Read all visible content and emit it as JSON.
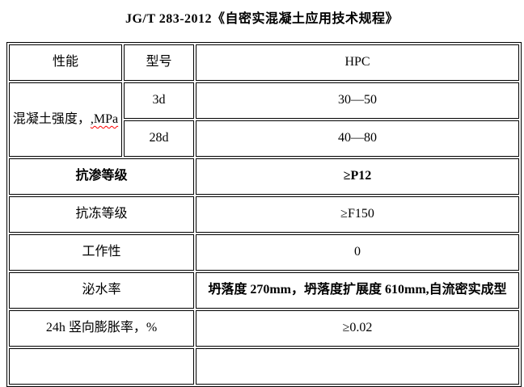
{
  "title": "JG/T 283-2012《自密实混凝土应用技术规程》",
  "table": {
    "header": {
      "performance": "性能",
      "model": "型号",
      "product": "HPC"
    },
    "strength": {
      "label_main": "混凝土强度，",
      "label_unit": ",MPa",
      "row_3d": {
        "age": "3d",
        "value": "30—50"
      },
      "row_28d": {
        "age": "28d",
        "value": "40—80"
      }
    },
    "impermeability": {
      "label": "抗渗等级",
      "value": "≥P12"
    },
    "frost_resistance": {
      "label": "抗冻等级",
      "value": "≥F150"
    },
    "workability": {
      "label": "工作性",
      "value": "0"
    },
    "bleeding_rate": {
      "label": "泌水率",
      "value": "坍落度 270mm，坍落度扩展度 610mm,自流密实成型"
    },
    "vertical_expansion": {
      "label": "24h 竖向膨胀率，%",
      "value": "≥0.02"
    },
    "partial_row": {
      "label": "",
      "value": ""
    }
  },
  "colors": {
    "text": "#000000",
    "border": "#000000",
    "background": "#ffffff",
    "spellcheck_underline": "#ff0000"
  }
}
